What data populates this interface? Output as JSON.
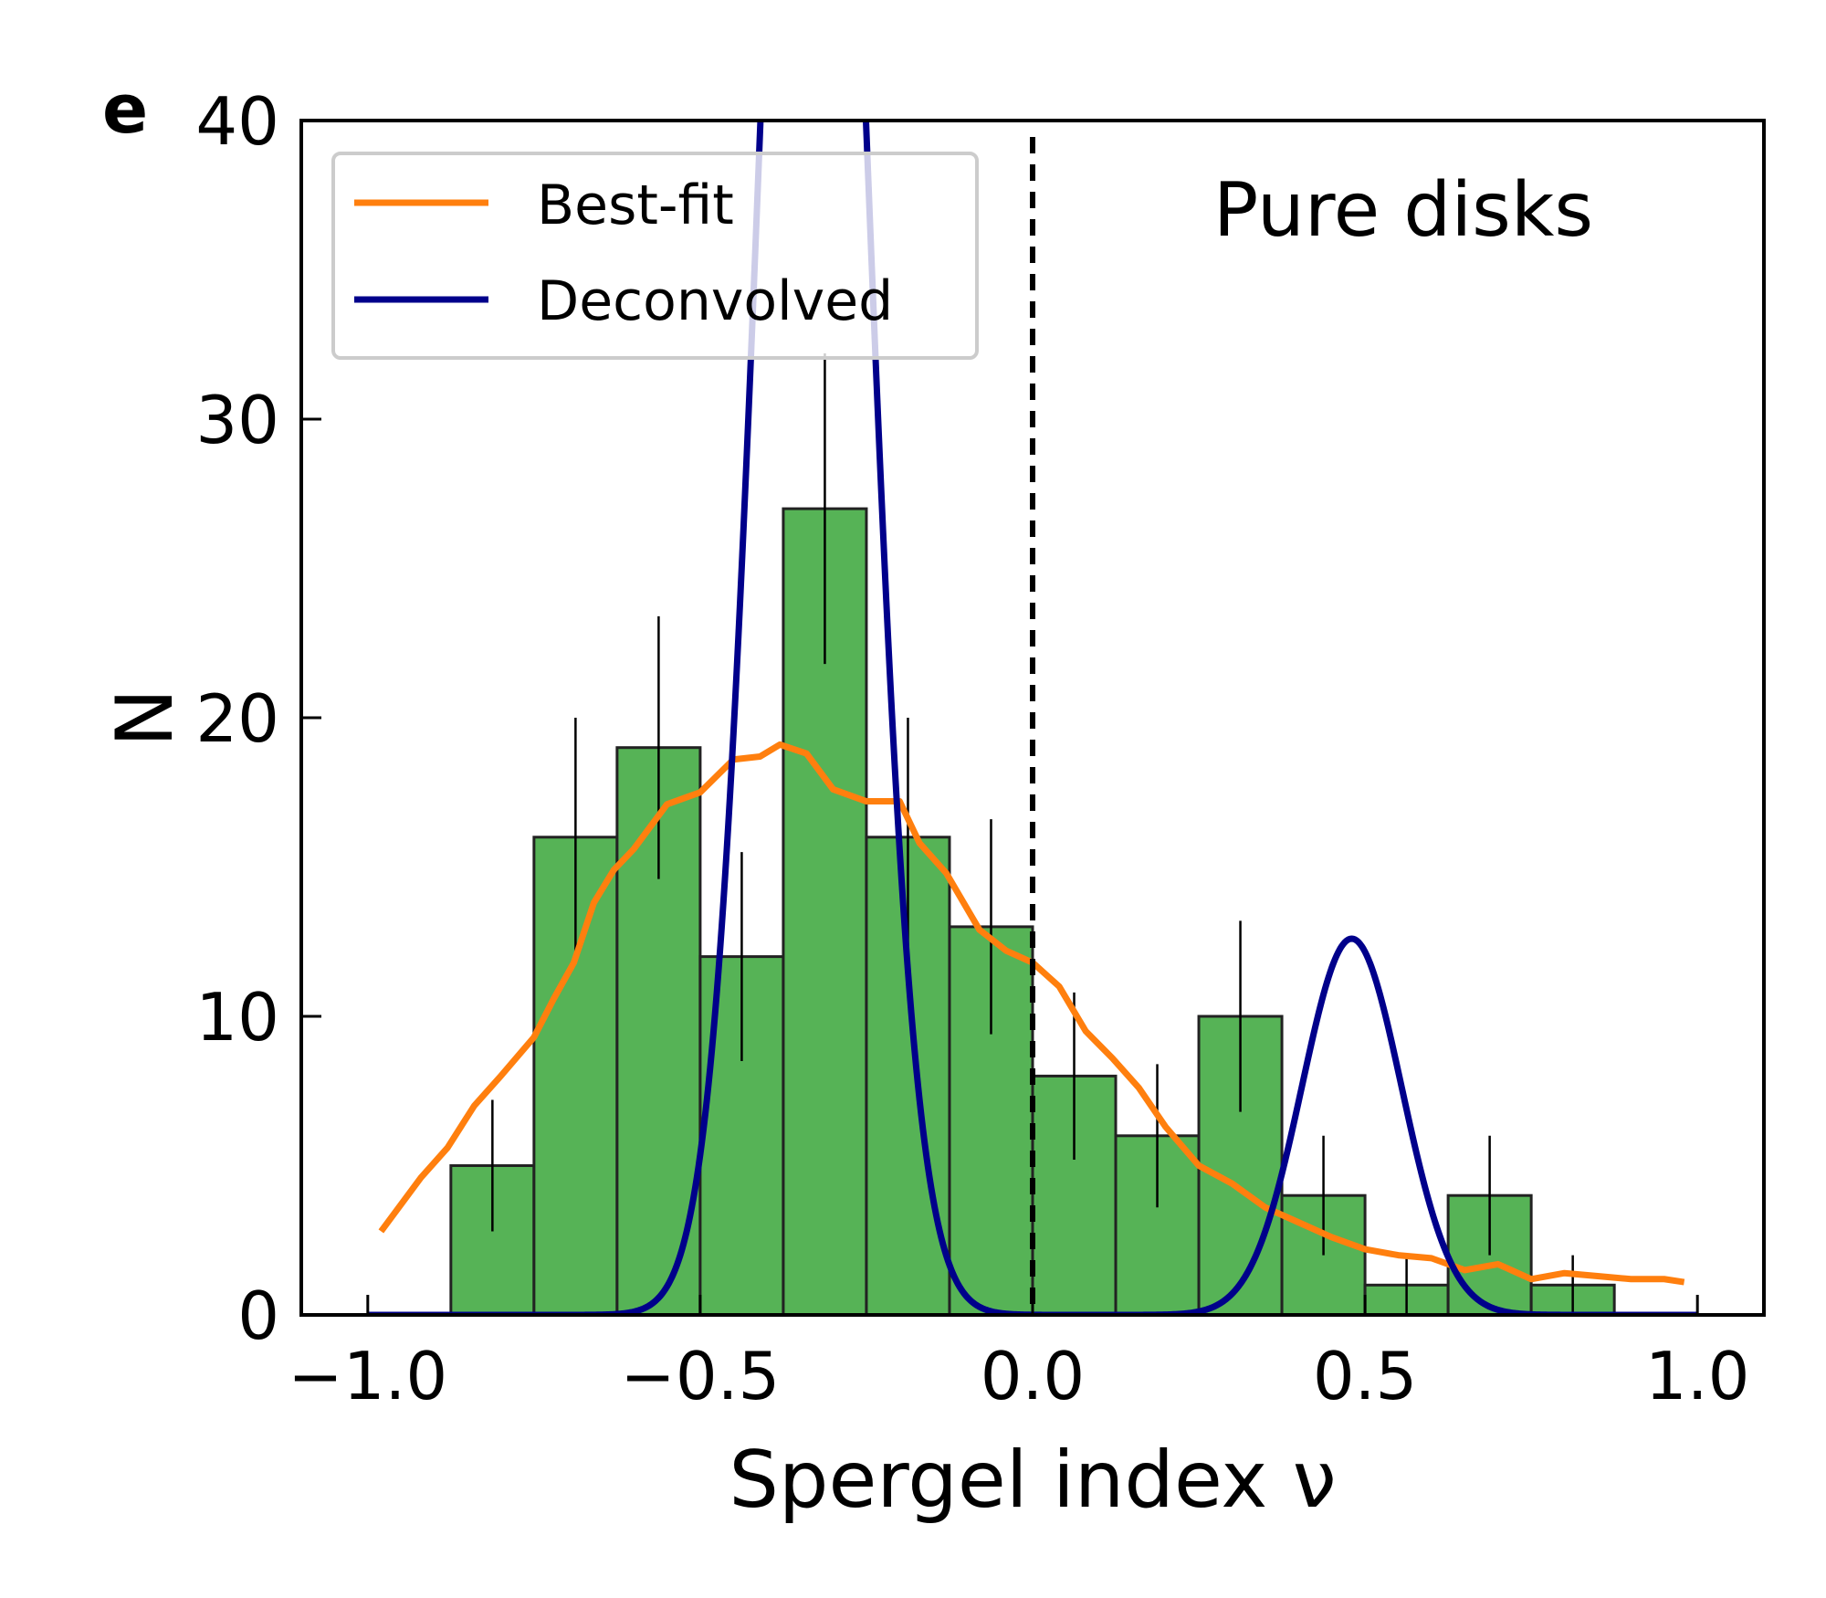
{
  "chart_data": {
    "type": "bar",
    "panel_label": "e",
    "annotation": "Pure disks",
    "xlabel": "Spergel index ν",
    "ylabel": "N",
    "xlim": [
      -1.1,
      1.1
    ],
    "ylim": [
      0,
      40
    ],
    "xticks": [
      -1.0,
      -0.5,
      0.0,
      0.5,
      1.0
    ],
    "xtick_labels": [
      "−1.0",
      "−0.5",
      "0.0",
      "0.5",
      "1.0"
    ],
    "yticks": [
      0,
      10,
      20,
      30,
      40
    ],
    "ytick_labels": [
      "0",
      "10",
      "20",
      "30",
      "40"
    ],
    "grid": false,
    "legend_position": "top-left",
    "vline": {
      "x": 0.0,
      "style": "dashed",
      "color": "#000000"
    },
    "histogram": {
      "bin_edges": [
        -0.875,
        -0.75,
        -0.625,
        -0.5,
        -0.375,
        -0.25,
        -0.125,
        0.0,
        0.125,
        0.25,
        0.375,
        0.5,
        0.625,
        0.75,
        0.875
      ],
      "bin_centers": [
        -0.8125,
        -0.6875,
        -0.5625,
        -0.4375,
        -0.3125,
        -0.1875,
        -0.0625,
        0.0625,
        0.1875,
        0.3125,
        0.4375,
        0.5625,
        0.6875,
        0.8125
      ],
      "counts": [
        5,
        16,
        19,
        12,
        27,
        16,
        13,
        8,
        6,
        10,
        4,
        1,
        4,
        1
      ],
      "errors": [
        2.2,
        4.0,
        4.4,
        3.5,
        5.2,
        4.0,
        3.6,
        2.8,
        2.4,
        3.2,
        2.0,
        1.0,
        2.0,
        1.0
      ],
      "color": "#56b356",
      "edge_color": "#222222"
    },
    "series": [
      {
        "name": "Best-fit",
        "color": "#ff7f0e",
        "x": [
          -0.98,
          -0.92,
          -0.88,
          -0.84,
          -0.8,
          -0.75,
          -0.72,
          -0.69,
          -0.66,
          -0.63,
          -0.6,
          -0.55,
          -0.5,
          -0.45,
          -0.41,
          -0.38,
          -0.34,
          -0.3,
          -0.25,
          -0.2,
          -0.17,
          -0.13,
          -0.08,
          -0.04,
          0.0,
          0.04,
          0.08,
          0.12,
          0.16,
          0.2,
          0.25,
          0.3,
          0.35,
          0.4,
          0.45,
          0.5,
          0.55,
          0.6,
          0.65,
          0.7,
          0.75,
          0.8,
          0.85,
          0.9,
          0.95,
          0.98
        ],
        "y": [
          2.8,
          4.6,
          5.6,
          7.0,
          8.0,
          9.3,
          10.6,
          11.8,
          13.8,
          14.9,
          15.6,
          17.1,
          17.5,
          18.6,
          18.7,
          19.1,
          18.8,
          17.6,
          17.2,
          17.2,
          15.8,
          14.8,
          12.9,
          12.2,
          11.8,
          11.0,
          9.5,
          8.6,
          7.6,
          6.3,
          5.0,
          4.4,
          3.6,
          3.1,
          2.6,
          2.2,
          2.0,
          1.9,
          1.5,
          1.7,
          1.2,
          1.4,
          1.3,
          1.2,
          1.2,
          1.1
        ]
      },
      {
        "name": "Deconvolved",
        "color": "#00008b",
        "components": [
          {
            "mu": -0.33,
            "sigma": 0.075,
            "amplitude": 70.0
          },
          {
            "mu": 0.48,
            "sigma": 0.075,
            "amplitude": 12.6
          }
        ]
      }
    ]
  }
}
